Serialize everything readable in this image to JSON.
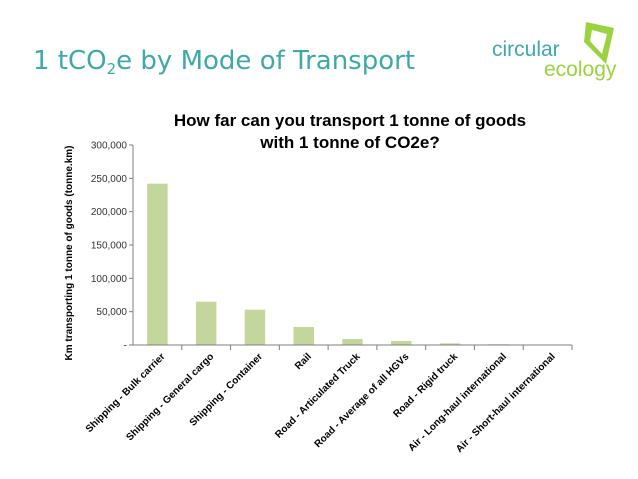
{
  "slide": {
    "title_prefix": "1 tCO",
    "title_sub": "2",
    "title_suffix": "e by Mode of Transport"
  },
  "logo": {
    "word1": "circular",
    "word2": "ecology",
    "color_text": "#3fa9a9",
    "color_mark": "#9bd240"
  },
  "chart_data": {
    "type": "bar",
    "title_lines": [
      "How far can you transport 1 tonne of goods",
      "with 1 tonne of CO2e?"
    ],
    "ylabel": "Km transporting 1 tonne of goods (tonne.km)",
    "xlabel": "",
    "categories": [
      "Shipping - Bulk carrier",
      "Shipping - General cargo",
      "Shipping - Container",
      "Rail",
      "Road - Articulated Truck",
      "Road - Average of all HGVs",
      "Road - Rigid truck",
      "Air - Long-haul international",
      "Air - Short-haul international"
    ],
    "values": [
      242000,
      65000,
      53000,
      27000,
      9000,
      6000,
      2500,
      1200,
      700
    ],
    "ylim": [
      0,
      300000
    ],
    "yticks": [
      0,
      50000,
      100000,
      150000,
      200000,
      250000,
      300000
    ],
    "ytick_labels": [
      "-",
      "50,000",
      "100,000",
      "150,000",
      "200,000",
      "250,000",
      "300,000"
    ],
    "bar_color": "#c3d69b",
    "grid": false,
    "legend": "none"
  }
}
